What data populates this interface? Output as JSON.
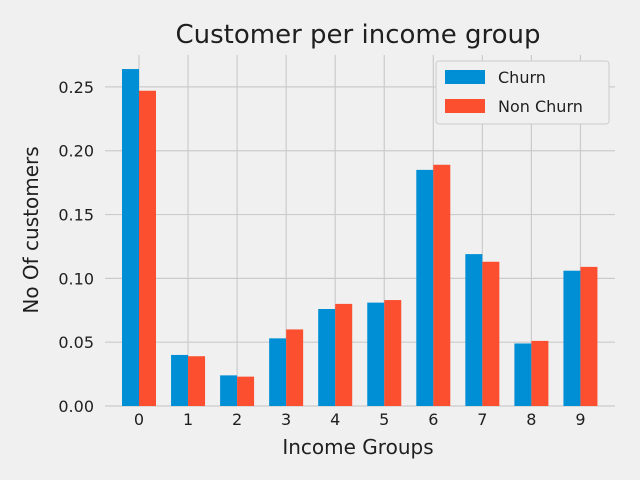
{
  "chart_data": {
    "type": "bar",
    "title": "Customer per income group",
    "xlabel": "Income Groups",
    "ylabel": "No Of customers",
    "categories": [
      "0",
      "1",
      "2",
      "3",
      "4",
      "5",
      "6",
      "7",
      "8",
      "9"
    ],
    "series": [
      {
        "name": "Churn",
        "color": "#008fd5",
        "values": [
          0.264,
          0.04,
          0.024,
          0.053,
          0.076,
          0.081,
          0.185,
          0.119,
          0.049,
          0.106
        ]
      },
      {
        "name": "Non Churn",
        "color": "#fc4f30",
        "values": [
          0.247,
          0.039,
          0.023,
          0.06,
          0.08,
          0.083,
          0.189,
          0.113,
          0.051,
          0.109
        ]
      }
    ],
    "ylim": [
      0,
      0.275
    ],
    "yticks": [
      "0.00",
      "0.05",
      "0.10",
      "0.15",
      "0.20",
      "0.25"
    ],
    "ytick_values": [
      0,
      0.05,
      0.1,
      0.15,
      0.2,
      0.25
    ],
    "grid": true,
    "legend_position": "top-right"
  }
}
